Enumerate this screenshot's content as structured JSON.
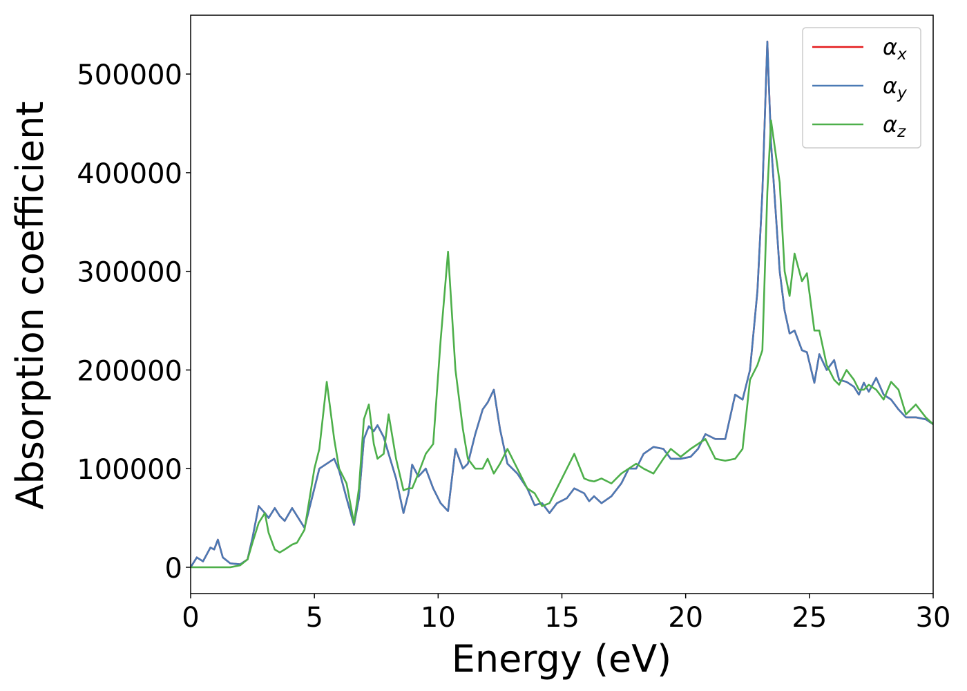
{
  "chart_data": {
    "type": "line",
    "xlabel": "Energy (eV)",
    "ylabel": "Absorption coefficient",
    "xlim": [
      0,
      30
    ],
    "ylim": [
      -26650,
      559650
    ],
    "xticks": [
      0,
      5,
      10,
      15,
      20,
      25,
      30
    ],
    "yticks": [
      0,
      100000,
      200000,
      300000,
      400000,
      500000
    ],
    "legend": "upper right",
    "x": [
      0,
      0.25,
      0.5,
      0.8,
      0.95,
      1.1,
      1.3,
      1.6,
      2.0,
      2.3,
      2.5,
      2.75,
      3.0,
      3.15,
      3.4,
      3.6,
      3.8,
      4.1,
      4.3,
      4.6,
      5.0,
      5.2,
      5.5,
      5.8,
      6.0,
      6.3,
      6.6,
      6.8,
      7.0,
      7.2,
      7.4,
      7.55,
      7.8,
      8.0,
      8.3,
      8.6,
      8.8,
      8.95,
      9.2,
      9.5,
      9.8,
      10.1,
      10.4,
      10.7,
      11.0,
      11.2,
      11.5,
      11.8,
      12.0,
      12.25,
      12.5,
      12.8,
      13.2,
      13.6,
      13.9,
      14.2,
      14.5,
      14.8,
      15.2,
      15.5,
      15.9,
      16.1,
      16.3,
      16.6,
      17.0,
      17.4,
      17.7,
      18.0,
      18.3,
      18.7,
      19.1,
      19.4,
      19.8,
      20.2,
      20.5,
      20.8,
      21.2,
      21.6,
      22.0,
      22.3,
      22.6,
      22.9,
      23.1,
      23.3,
      23.45,
      23.8,
      24.0,
      24.2,
      24.4,
      24.7,
      24.9,
      25.2,
      25.4,
      25.7,
      26.0,
      26.2,
      26.5,
      26.8,
      27.0,
      27.2,
      27.4,
      27.7,
      28.0,
      28.3,
      28.6,
      28.9,
      29.3,
      29.7,
      30
    ],
    "series": [
      {
        "name": "αx",
        "color": "#e41a1c",
        "values": [
          0,
          10000,
          6000,
          20000,
          18000,
          28000,
          10000,
          4000,
          3000,
          8000,
          30000,
          62000,
          55000,
          50000,
          60000,
          52000,
          47000,
          60000,
          52000,
          40000,
          80000,
          100000,
          105000,
          110000,
          98000,
          70000,
          43000,
          70000,
          130000,
          143000,
          138000,
          144000,
          132000,
          115000,
          90000,
          55000,
          75000,
          104000,
          92000,
          100000,
          80000,
          65000,
          57000,
          120000,
          100000,
          105000,
          135000,
          160000,
          167000,
          180000,
          140000,
          105000,
          95000,
          80000,
          63000,
          65000,
          55000,
          65000,
          70000,
          80000,
          75000,
          67000,
          72000,
          65000,
          72000,
          85000,
          100000,
          100000,
          115000,
          122000,
          120000,
          110000,
          110000,
          112000,
          120000,
          135000,
          130000,
          130000,
          175000,
          170000,
          200000,
          280000,
          380000,
          533000,
          430000,
          300000,
          260000,
          237000,
          240000,
          220000,
          218000,
          187000,
          216000,
          200000,
          210000,
          190000,
          188000,
          183000,
          175000,
          187000,
          178000,
          192000,
          175000,
          170000,
          160000,
          152000,
          152000,
          150000,
          145000
        ]
      },
      {
        "name": "αy",
        "color": "#4a7ab5",
        "values": [
          0,
          10000,
          6000,
          20000,
          18000,
          28000,
          10000,
          4000,
          3000,
          8000,
          30000,
          62000,
          55000,
          50000,
          60000,
          52000,
          47000,
          60000,
          52000,
          40000,
          80000,
          100000,
          105000,
          110000,
          98000,
          70000,
          43000,
          70000,
          130000,
          143000,
          138000,
          144000,
          132000,
          115000,
          90000,
          55000,
          75000,
          104000,
          92000,
          100000,
          80000,
          65000,
          57000,
          120000,
          100000,
          105000,
          135000,
          160000,
          167000,
          180000,
          140000,
          105000,
          95000,
          80000,
          63000,
          65000,
          55000,
          65000,
          70000,
          80000,
          75000,
          67000,
          72000,
          65000,
          72000,
          85000,
          100000,
          100000,
          115000,
          122000,
          120000,
          110000,
          110000,
          112000,
          120000,
          135000,
          130000,
          130000,
          175000,
          170000,
          200000,
          280000,
          380000,
          533000,
          430000,
          300000,
          260000,
          237000,
          240000,
          220000,
          218000,
          187000,
          216000,
          200000,
          210000,
          190000,
          188000,
          183000,
          175000,
          187000,
          178000,
          192000,
          175000,
          170000,
          160000,
          152000,
          152000,
          150000,
          145000
        ]
      },
      {
        "name": "αz",
        "color": "#4daf4a",
        "values": [
          0,
          0,
          0,
          0,
          0,
          0,
          0,
          0,
          2000,
          8000,
          25000,
          45000,
          55000,
          35000,
          18000,
          15000,
          18000,
          23000,
          25000,
          38000,
          100000,
          120000,
          188000,
          130000,
          100000,
          85000,
          45000,
          80000,
          150000,
          165000,
          125000,
          110000,
          115000,
          155000,
          110000,
          78000,
          80000,
          80000,
          95000,
          115000,
          125000,
          230000,
          320000,
          200000,
          140000,
          110000,
          100000,
          100000,
          110000,
          95000,
          105000,
          120000,
          100000,
          80000,
          75000,
          62000,
          65000,
          80000,
          100000,
          115000,
          90000,
          88000,
          87000,
          90000,
          85000,
          95000,
          100000,
          105000,
          100000,
          95000,
          110000,
          120000,
          112000,
          120000,
          125000,
          130000,
          110000,
          108000,
          110000,
          120000,
          190000,
          205000,
          220000,
          380000,
          453000,
          390000,
          300000,
          275000,
          318000,
          290000,
          298000,
          240000,
          240000,
          205000,
          190000,
          185000,
          200000,
          190000,
          180000,
          180000,
          185000,
          180000,
          170000,
          188000,
          180000,
          155000,
          165000,
          152000,
          145000
        ]
      }
    ]
  }
}
